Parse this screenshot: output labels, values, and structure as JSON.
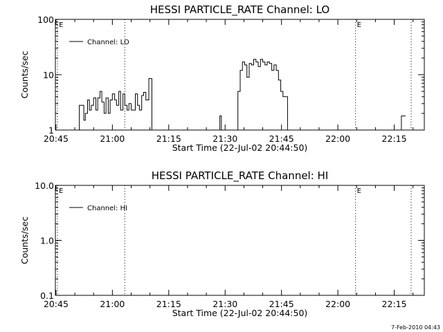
{
  "footer": {
    "timestamp": "7-Feb-2010 04:43"
  },
  "chart_data": [
    {
      "type": "line",
      "title": "HESSI PARTICLE_RATE Channel: LO",
      "xlabel": "Start Time (22-Jul-02 20:44:50)",
      "ylabel": "Counts/sec",
      "yscale": "log",
      "ylim": [
        1,
        100
      ],
      "y_ticks": [
        1,
        10,
        100
      ],
      "y_tick_labels": [
        "1",
        "10",
        "100"
      ],
      "xlim": [
        "20:44:50",
        "22:23:00"
      ],
      "x_tick_labels": [
        "20:45",
        "21:00",
        "21:15",
        "21:30",
        "21:45",
        "22:00",
        "22:15"
      ],
      "x_tick_minutes": [
        45,
        60,
        75,
        90,
        105,
        120,
        135
      ],
      "series": [
        {
          "name": "Channel: LO",
          "x_minutes": [
            50.5,
            51.2,
            51.8,
            52.4,
            52.8,
            53.4,
            53.9,
            54.4,
            55.0,
            55.6,
            56.1,
            56.7,
            57.2,
            57.8,
            58.3,
            58.9,
            59.4,
            60.0,
            60.6,
            61.1,
            61.7,
            62.2,
            62.8,
            63.3,
            63.9,
            64.4,
            65.0,
            65.6,
            66.1,
            66.7,
            67.2,
            67.8,
            68.3,
            68.9,
            69.7,
            70.5,
            88.3,
            88.6,
            89.0,
            92.8,
            93.4,
            94.0,
            94.6,
            95.2,
            95.8,
            96.4,
            97.0,
            97.6,
            98.2,
            98.8,
            99.4,
            100.0,
            100.6,
            101.2,
            101.8,
            102.4,
            103.0,
            103.6,
            104.2,
            104.8,
            105.4,
            106.0,
            106.6,
            107.2,
            107.8,
            108.4,
            136.5,
            136.9,
            138.0
          ],
          "y": [
            1.0,
            2.8,
            2.8,
            1.5,
            2.0,
            3.5,
            2.3,
            2.8,
            3.8,
            2.3,
            3.8,
            5.0,
            3.2,
            2.0,
            3.8,
            2.0,
            3.5,
            4.5,
            3.5,
            2.8,
            5.0,
            2.3,
            4.5,
            2.8,
            2.3,
            3.0,
            2.3,
            2.3,
            4.5,
            2.8,
            2.3,
            4.2,
            4.8,
            3.5,
            8.5,
            1.0,
            1.0,
            1.8,
            1.0,
            1.0,
            5.0,
            12.0,
            17.0,
            15.0,
            9.0,
            16.0,
            15.0,
            19.0,
            17.0,
            14.0,
            19.0,
            17.0,
            15.0,
            17.0,
            16.0,
            12.0,
            15.0,
            12.0,
            8.0,
            5.0,
            4.0,
            4.0,
            1.0,
            1.0,
            1.0,
            1.0,
            1.0,
            1.8,
            1.8
          ]
        }
      ],
      "markers": [
        {
          "label": "E",
          "minute": 45.4
        },
        {
          "label": "",
          "minute": 63.3
        },
        {
          "label": "E",
          "minute": 124.7
        },
        {
          "label": "",
          "minute": 139.5
        }
      ],
      "legend_position": "top-left"
    },
    {
      "type": "line",
      "title": "HESSI PARTICLE_RATE Channel: HI",
      "xlabel": "Start Time (22-Jul-02 20:44:50)",
      "ylabel": "Counts/sec",
      "yscale": "log",
      "ylim": [
        0.1,
        10.0
      ],
      "y_ticks": [
        0.1,
        1.0,
        10.0
      ],
      "y_tick_labels": [
        "0.1",
        "1.0",
        "10.0"
      ],
      "xlim": [
        "20:44:50",
        "22:23:00"
      ],
      "x_tick_labels": [
        "20:45",
        "21:00",
        "21:15",
        "21:30",
        "21:45",
        "22:00",
        "22:15"
      ],
      "x_tick_minutes": [
        45,
        60,
        75,
        90,
        105,
        120,
        135
      ],
      "series": [
        {
          "name": "Channel: HI",
          "x_minutes": [],
          "y": []
        }
      ],
      "markers": [
        {
          "label": "E",
          "minute": 45.4
        },
        {
          "label": "",
          "minute": 63.3
        },
        {
          "label": "E",
          "minute": 124.7
        },
        {
          "label": "",
          "minute": 139.5
        }
      ],
      "legend_position": "top-left"
    }
  ]
}
